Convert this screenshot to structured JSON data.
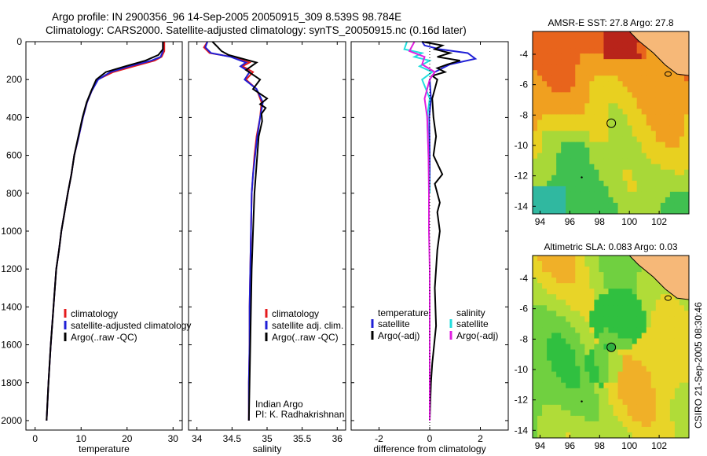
{
  "figure": {
    "title_line1": "Argo profile: IN 2900356_96 14-Sep-2005 20050915_309 8.539S 98.784E",
    "title_line2": "Climatology: CARS2000. Satellite-adjusted climatology: synTS_20050915.nc (0.16d later)",
    "side_label": "CSIRO 21-Sep-2005 08:30:46"
  },
  "colors": {
    "red": "#e41a1c",
    "blue": "#1f1fd6",
    "black": "#000000",
    "cyan": "#22dede",
    "magenta": "#e020e0"
  },
  "chart_data": [
    {
      "id": "temperature",
      "type": "line",
      "xlabel": "temperature",
      "xlim": [
        -2,
        32
      ],
      "ylim": [
        2050,
        0
      ],
      "x_ticks": [
        0,
        10,
        20,
        30
      ],
      "y_ticks": [
        0,
        200,
        400,
        600,
        800,
        1000,
        1200,
        1400,
        1600,
        1800,
        2000
      ],
      "legend": [
        "climatology",
        "satellite-adjusted climatology",
        "Argo(..raw -QC)"
      ],
      "series": [
        {
          "name": "climatology",
          "color": "red",
          "x": [
            28.1,
            28.1,
            27.5,
            26.0,
            21.5,
            17.0,
            13.6,
            12.3,
            11.3,
            10.4,
            9.5,
            8.5,
            7.9,
            7.1,
            6.4,
            5.7,
            5.2,
            4.6,
            4.0,
            3.4,
            2.9,
            2.5
          ],
          "y": [
            0,
            50,
            80,
            100,
            130,
            160,
            200,
            260,
            320,
            400,
            500,
            600,
            700,
            800,
            900,
            1000,
            1100,
            1200,
            1400,
            1600,
            1800,
            2000
          ]
        },
        {
          "name": "satellite-adjusted climatology",
          "color": "blue",
          "x": [
            27.8,
            27.8,
            27.3,
            25.3,
            20.5,
            16.4,
            13.7,
            12.3,
            11.3,
            10.4,
            9.5,
            8.5,
            7.9,
            7.1,
            6.4,
            5.7,
            5.2,
            4.6,
            4.0,
            3.4,
            2.9,
            2.5
          ],
          "y": [
            0,
            50,
            80,
            100,
            130,
            160,
            200,
            260,
            320,
            400,
            500,
            600,
            700,
            800,
            900,
            1000,
            1100,
            1200,
            1400,
            1600,
            1800,
            2000
          ]
        },
        {
          "name": "Argo(..raw -QC)",
          "color": "black",
          "x": [
            27.8,
            27.8,
            26.8,
            24.0,
            19.6,
            15.4,
            13.3,
            12.2,
            11.2,
            10.3,
            9.4,
            8.5,
            7.9,
            7.1,
            6.4,
            5.7,
            5.2,
            4.6,
            4.0,
            3.4,
            2.9,
            2.5
          ],
          "y": [
            0,
            40,
            70,
            100,
            130,
            160,
            200,
            260,
            320,
            400,
            500,
            600,
            700,
            800,
            900,
            1000,
            1100,
            1200,
            1400,
            1600,
            1800,
            2000
          ]
        }
      ]
    },
    {
      "id": "salinity",
      "type": "line",
      "xlabel": "salinity",
      "xlim": [
        33.88,
        36.12
      ],
      "ylim": [
        2050,
        0
      ],
      "x_ticks": [
        34,
        34.5,
        35,
        35.5,
        36
      ],
      "legend": [
        "climatology",
        "satellite adj. clim.",
        "Argo(..raw -QC)"
      ],
      "annotation": [
        "Indian Argo",
        "PI: K. Radhakrishnan"
      ],
      "series": [
        {
          "name": "climatology",
          "color": "red",
          "x": [
            34.15,
            34.1,
            34.18,
            34.5,
            34.75,
            34.65,
            34.8,
            34.7,
            34.85,
            34.92,
            34.9,
            34.85,
            34.82,
            34.8,
            34.78,
            34.77,
            34.76,
            34.75,
            34.75,
            34.74,
            34.74
          ],
          "y": [
            0,
            30,
            60,
            80,
            110,
            130,
            160,
            200,
            250,
            320,
            400,
            500,
            600,
            700,
            800,
            1000,
            1200,
            1400,
            1600,
            1800,
            2000
          ]
        },
        {
          "name": "satellite adj. clim.",
          "color": "blue",
          "x": [
            34.15,
            34.12,
            34.2,
            34.48,
            34.7,
            34.62,
            34.75,
            34.68,
            34.85,
            34.94,
            34.9,
            34.86,
            34.83,
            34.8,
            34.78,
            34.77,
            34.76,
            34.75,
            34.75,
            34.74,
            34.74
          ],
          "y": [
            0,
            30,
            60,
            80,
            110,
            130,
            160,
            200,
            250,
            320,
            400,
            500,
            600,
            700,
            800,
            1000,
            1200,
            1400,
            1600,
            1800,
            2000
          ]
        },
        {
          "name": "Argo(..raw -QC)",
          "color": "black",
          "x": [
            34.22,
            34.3,
            34.35,
            34.45,
            34.85,
            34.7,
            34.9,
            34.8,
            35.0,
            34.9,
            34.98,
            34.92,
            34.93,
            34.88,
            34.86,
            34.84,
            34.82,
            34.8,
            34.78,
            34.77,
            34.76,
            34.75,
            34.74
          ],
          "y": [
            0,
            30,
            50,
            70,
            110,
            150,
            200,
            250,
            300,
            330,
            350,
            380,
            420,
            500,
            600,
            700,
            800,
            1000,
            1200,
            1400,
            1600,
            1800,
            2000
          ]
        }
      ]
    },
    {
      "id": "difference",
      "type": "line",
      "xlabel": "difference from climatology",
      "xlim": [
        -3.1,
        3.1
      ],
      "ylim": [
        2050,
        0
      ],
      "x_ticks": [
        -2,
        0,
        2
      ],
      "legend_left": {
        "title": "temperature",
        "items": [
          "satellite",
          "Argo(-adj)"
        ],
        "colors": [
          "blue",
          "black"
        ]
      },
      "legend_right": {
        "title": "salinity",
        "items": [
          "satellite",
          "Argo(-adj)"
        ],
        "colors": [
          "cyan",
          "magenta"
        ]
      },
      "series": [
        {
          "name": "temperature satellite",
          "color": "blue",
          "x": [
            -0.3,
            -0.2,
            0.4,
            1.5,
            1.8,
            0.8,
            0.2,
            0.0,
            0.05,
            -0.02,
            0.0,
            0.0
          ],
          "y": [
            0,
            20,
            40,
            60,
            90,
            120,
            160,
            200,
            300,
            400,
            600,
            800
          ]
        },
        {
          "name": "temperature Argo(-adj)",
          "color": "black",
          "x": [
            -0.3,
            0.5,
            0.2,
            0.8,
            0.3,
            1.2,
            0.7,
            0.3,
            0.6,
            0.1,
            0.3,
            0.2,
            0.1,
            0.15,
            0.25,
            0.15,
            0.5,
            0.2,
            0.3,
            0.4,
            0.3,
            0.4,
            0.3,
            0.2,
            0.25,
            0.1,
            0.05,
            0.0
          ],
          "y": [
            0,
            20,
            40,
            60,
            80,
            100,
            120,
            140,
            160,
            180,
            200,
            250,
            300,
            400,
            500,
            600,
            700,
            750,
            800,
            850,
            900,
            1000,
            1100,
            1300,
            1500,
            1700,
            1800,
            2000
          ]
        },
        {
          "name": "salinity satellite",
          "color": "cyan",
          "x": [
            -0.9,
            -1.0,
            -0.3,
            -0.6,
            0.0,
            -0.4,
            0.1,
            -0.3,
            0.0,
            -0.1,
            -0.05,
            0.0
          ],
          "y": [
            0,
            40,
            60,
            80,
            100,
            130,
            160,
            200,
            300,
            400,
            600,
            800
          ]
        },
        {
          "name": "salinity Argo(-adj)",
          "color": "magenta",
          "x": [
            -0.6,
            -0.8,
            -0.2,
            -0.3,
            0.2,
            0.0,
            -0.2,
            -0.1,
            -0.05,
            -0.03,
            -0.03,
            0.0,
            0.0,
            0.0,
            0.0
          ],
          "y": [
            0,
            50,
            80,
            120,
            160,
            200,
            300,
            400,
            600,
            800,
            1000,
            1200,
            1400,
            1600,
            2000
          ]
        }
      ]
    },
    {
      "id": "sst_map",
      "type": "heatmap",
      "title": "AMSR-E SST: 27.8 Argo: 27.8",
      "x_ticks": [
        94,
        96,
        98,
        100,
        102
      ],
      "y_ticks": [
        -4,
        -6,
        -8,
        -10,
        -12,
        -14
      ],
      "xlim": [
        93.5,
        104
      ],
      "ylim": [
        -14.5,
        -2.5
      ],
      "marker": {
        "lon": 98.784,
        "lat": -8.539
      }
    },
    {
      "id": "sla_map",
      "type": "heatmap",
      "title": "Altimetric SLA: 0.083 Argo: 0.03",
      "x_ticks": [
        94,
        96,
        98,
        100,
        102
      ],
      "y_ticks": [
        -4,
        -6,
        -8,
        -10,
        -12,
        -14
      ],
      "xlim": [
        93.5,
        104
      ],
      "ylim": [
        -14.5,
        -2.5
      ],
      "marker": {
        "lon": 98.784,
        "lat": -8.539
      }
    }
  ]
}
